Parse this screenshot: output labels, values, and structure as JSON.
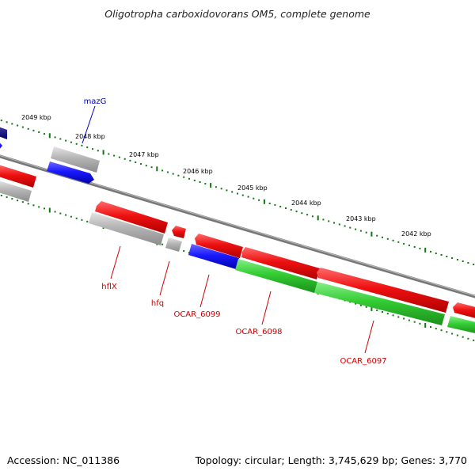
{
  "title": "Oligotropha carboxidovorans OM5, complete genome",
  "footer": {
    "accession": "Accession: NC_011386",
    "topology": "Topology: circular; Length: 3,745,629 bp; Genes: 3,770"
  },
  "kbp_labels": [
    "2049 kbp",
    "2048 kbp",
    "2047 kbp",
    "2046 kbp",
    "2045 kbp",
    "2044 kbp",
    "2043 kbp",
    "2042 kbp"
  ],
  "gene_labels": {
    "mazG": "mazG",
    "hflX": "hflX",
    "hfq": "hfq",
    "OCAR_6099": "OCAR_6099",
    "OCAR_6098": "OCAR_6098",
    "OCAR_6097": "OCAR_6097"
  },
  "colors": {
    "forward_gene": "#ee1111",
    "reverse_gene": "#aaaaaa",
    "cds_blue": "#1a1aff",
    "rna_green": "#33cc33",
    "backbone": "#777777",
    "tick": "#117711",
    "label_red": "#cc0000",
    "label_blue": "#0000bb"
  }
}
